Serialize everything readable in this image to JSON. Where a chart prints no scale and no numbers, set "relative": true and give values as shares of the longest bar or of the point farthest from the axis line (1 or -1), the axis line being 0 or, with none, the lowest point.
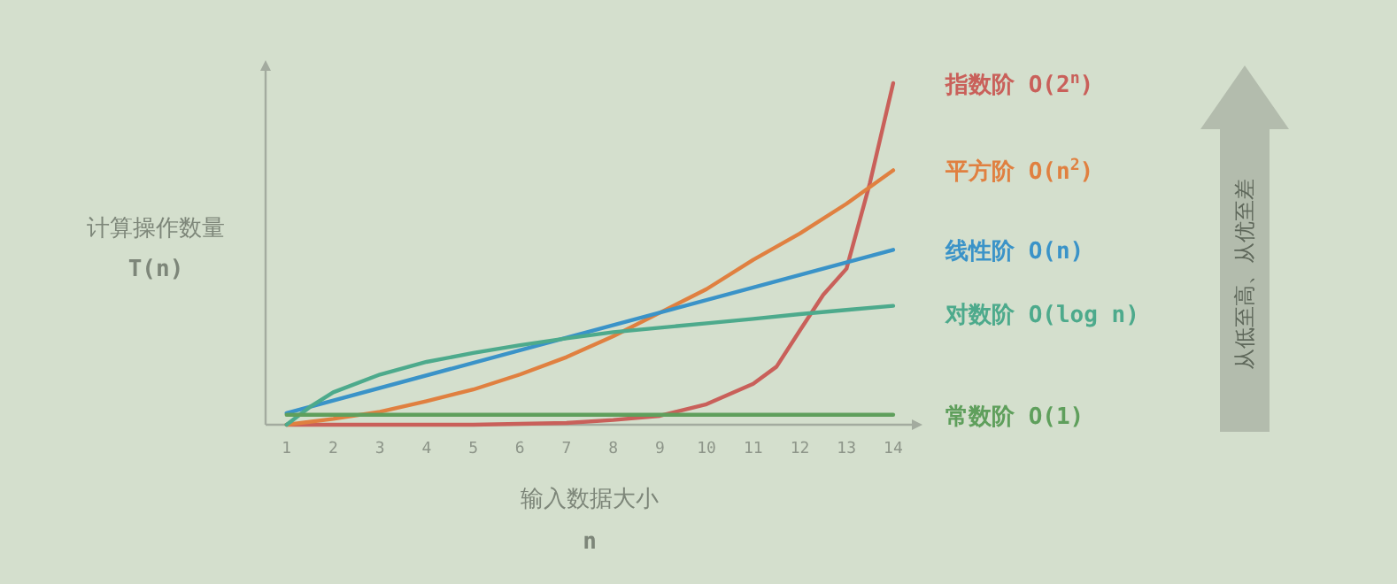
{
  "chart_data": {
    "type": "line",
    "relative": true,
    "xlabel": "输入数据大小 n",
    "ylabel": "计算操作数量 T(n)",
    "xlim": [
      0.55,
      14.4
    ],
    "xticks": [
      1,
      2,
      3,
      4,
      5,
      6,
      7,
      8,
      9,
      10,
      11,
      12,
      13,
      14
    ],
    "legend": false,
    "grid": false,
    "marker": "none",
    "line_style": "solid",
    "annotations": [
      "从低至高、从优至差"
    ],
    "series": [
      {
        "name": "指数阶 O(2$^{n}$)",
        "color": "#c9605a",
        "x": [
          1,
          3,
          5,
          7,
          8,
          9,
          10,
          11,
          11.5,
          12,
          12.5,
          13,
          13.5,
          14
        ],
        "values": [
          0,
          0,
          0,
          0.005,
          0.014,
          0.026,
          0.06,
          0.12,
          0.17,
          0.276,
          0.38,
          0.457,
          0.707,
          1
        ]
      },
      {
        "name": "平方阶 O(n$^{2}$)",
        "color": "#e08040",
        "x": [
          1,
          2,
          3,
          4,
          5,
          6,
          7,
          8,
          9,
          10,
          11,
          12,
          13,
          14
        ],
        "values": [
          0,
          0.017,
          0.038,
          0.069,
          0.103,
          0.147,
          0.198,
          0.259,
          0.328,
          0.397,
          0.483,
          0.56,
          0.647,
          0.745
        ]
      },
      {
        "name": "线性阶 O(n)",
        "color": "#3a93c8",
        "x": [
          1,
          7,
          14
        ],
        "values": [
          0.034,
          0.255,
          0.512
        ]
      },
      {
        "name": "对数阶 O(log n)",
        "color": "#4daa8c",
        "x": [
          1,
          1.5,
          2,
          3,
          4,
          5,
          6,
          7,
          8,
          9,
          10,
          11,
          12,
          13,
          14
        ],
        "values": [
          0,
          0.052,
          0.095,
          0.147,
          0.184,
          0.21,
          0.233,
          0.253,
          0.271,
          0.284,
          0.297,
          0.31,
          0.324,
          0.336,
          0.348
        ]
      },
      {
        "name": "常数阶 O(1)",
        "color": "#5f9f5c",
        "x": [
          1,
          14
        ],
        "values": [
          0.029,
          0.029
        ]
      }
    ]
  }
}
